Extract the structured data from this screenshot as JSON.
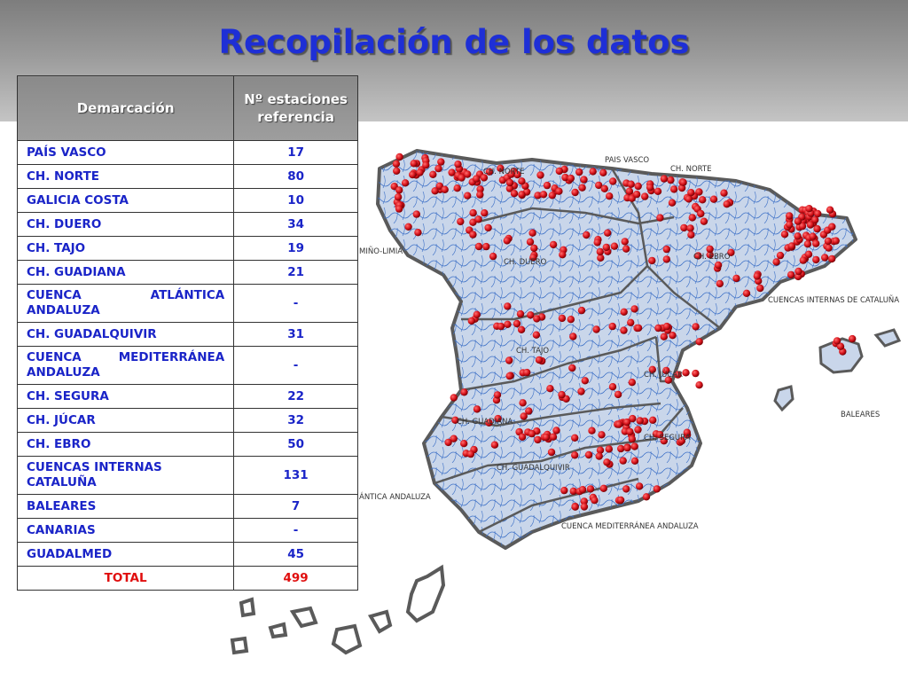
{
  "title": "Recopilación de los datos",
  "table": {
    "headers": [
      "Demarcación",
      "Nº estaciones referencia"
    ],
    "rows": [
      {
        "name": "PAÍS VASCO",
        "value": "17"
      },
      {
        "name": "CH. NORTE",
        "value": "80"
      },
      {
        "name": "GALICIA COSTA",
        "value": "10"
      },
      {
        "name": "CH. DUERO",
        "value": "34"
      },
      {
        "name": "CH. TAJO",
        "value": "19"
      },
      {
        "name": "CH. GUADIANA",
        "value": "21"
      },
      {
        "name": "CUENCA ATLÁNTICA ANDALUZA",
        "value": "-"
      },
      {
        "name": "CH. GUADALQUIVIR",
        "value": "31"
      },
      {
        "name": "CUENCA MEDITERRÁNEA ANDALUZA",
        "value": "-"
      },
      {
        "name": "CH. SEGURA",
        "value": "22"
      },
      {
        "name": "CH. JÚCAR",
        "value": "32"
      },
      {
        "name": "CH. EBRO",
        "value": "50"
      },
      {
        "name": "CUENCAS INTERNAS CATALUÑA",
        "value": "131"
      },
      {
        "name": "BALEARES",
        "value": "7"
      },
      {
        "name": "CANARIAS",
        "value": "-"
      },
      {
        "name": "GUADALMED",
        "value": "45"
      }
    ],
    "total": {
      "name": "TOTAL",
      "value": "499"
    }
  },
  "map": {
    "labels": {
      "pais_vasco": "PAIS VASCO",
      "ch_norte_1": "CH. NORTE",
      "ch_norte_2": "CH. NORTE",
      "mino_limia": "MIÑO-LIMIA",
      "ch_duero": "CH. DUERO",
      "ch_ebro": "CH. EBRO",
      "cuencas_internas": "CUENCAS INTERNAS DE CATALUÑA",
      "ch_tajo": "CH. TAJO",
      "ch_jucar": "CH. JÚCAR",
      "baleares": "BALEARES",
      "ch_guadiana": "CH. GUADIANA",
      "ch_segura": "CH. SEGURA",
      "ch_guadalquivir": "CH. GUADALQUIVIR",
      "atlantica_andaluza": "ÁNTICA ANDALUZA",
      "mediterranea_andaluza": "CUENCA MEDITERRÁNEA ANDALUZA"
    },
    "colors": {
      "land": "#c9d6ea",
      "river": "#3b6fc6",
      "border": "#5a5a5a",
      "station": "#d8141c"
    },
    "legend": "station-dots"
  }
}
